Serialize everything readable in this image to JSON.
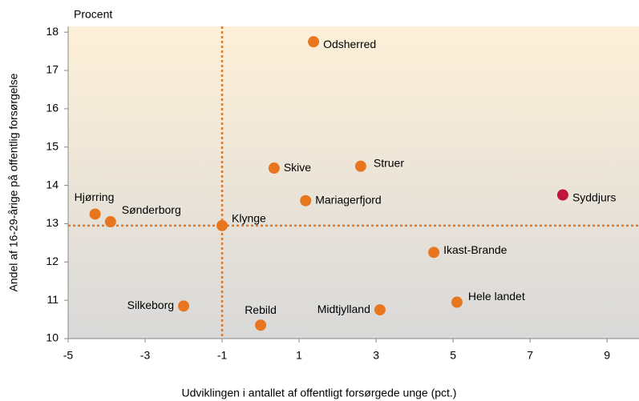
{
  "chart_data": {
    "type": "scatter",
    "unit_label": "Procent",
    "x_label": "Udviklingen i antallet af offentligt forsørgede unge (pct.)",
    "y_label": "Andel af 16-29-årige på offentlig forsørgelse",
    "labels": [
      "Odsherred",
      "Skive",
      "Struer",
      "Mariagerfjord",
      "Syddjurs",
      "Hjørring",
      "Sønderborg",
      "Klynge",
      "Ikast-Brande",
      "Silkeborg",
      "Rebild",
      "Midtjylland",
      "Hele landet"
    ],
    "x": [
      1.375,
      0.35,
      2.6,
      1.17,
      7.85,
      -4.3,
      -3.9,
      -1.0,
      4.5,
      -2.0,
      0.0,
      3.1,
      5.1
    ],
    "values": [
      17.75,
      14.45,
      14.5,
      13.6,
      13.75,
      13.25,
      13.05,
      12.95,
      12.25,
      10.85,
      10.35,
      10.75,
      10.95
    ],
    "colors": [
      "#e8761e",
      "#e8761e",
      "#e8761e",
      "#e8761e",
      "#c0143c",
      "#e8761e",
      "#e8761e",
      "#e8761e",
      "#e8761e",
      "#e8761e",
      "#e8761e",
      "#e8761e",
      "#e8761e"
    ],
    "reference_lines": {
      "x": -1.0,
      "y": 12.95,
      "color": "#e8761e"
    },
    "xlim": [
      -5,
      9.83
    ],
    "ylim": [
      10,
      18.15
    ],
    "xticks": [
      -5,
      -3,
      -1,
      1,
      3,
      5,
      7,
      9
    ],
    "yticks": [
      10,
      11,
      12,
      13,
      14,
      15,
      16,
      17,
      18
    ]
  }
}
